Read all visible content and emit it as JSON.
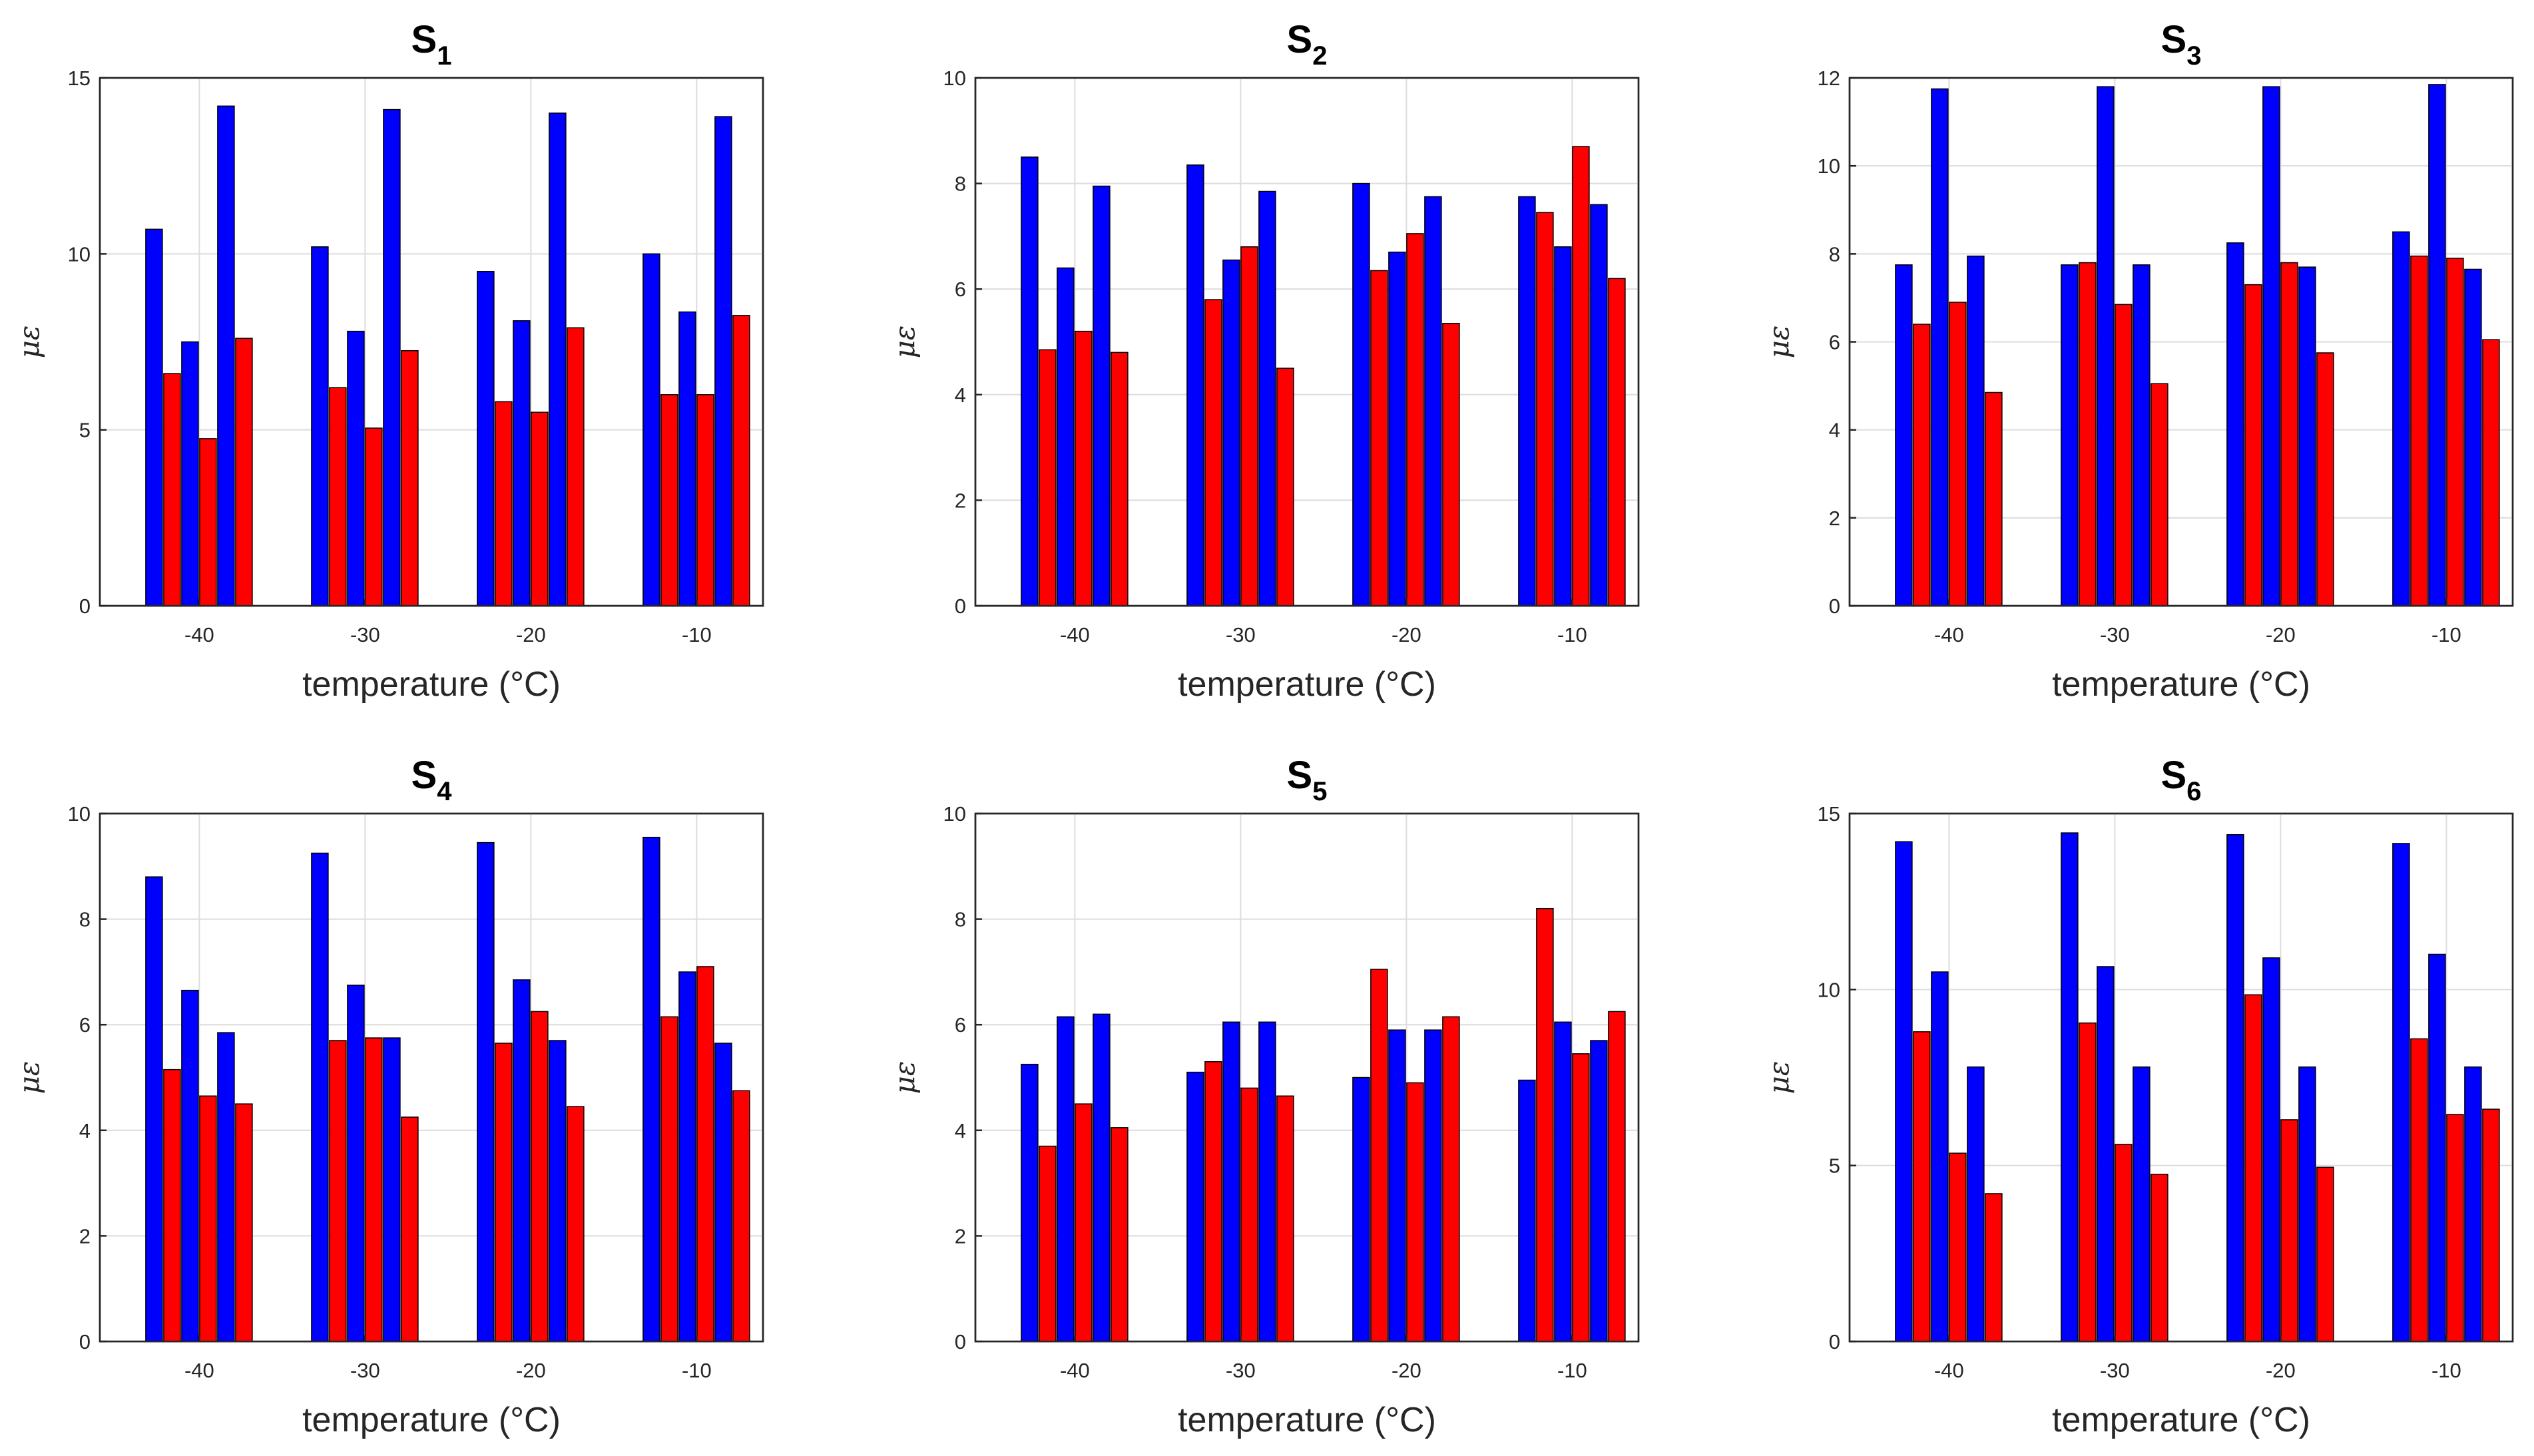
{
  "colors": {
    "blue": "#0000ff",
    "red": "#ff0000"
  },
  "chart_data": [
    {
      "type": "bar",
      "title": "S",
      "title_sub": "1",
      "xlabel": "temperature (°C)",
      "ylabel": "με",
      "categories": [
        "-40",
        "-30",
        "-20",
        "-10"
      ],
      "ylim": [
        0,
        15
      ],
      "yticks": [
        "0",
        "5",
        "10",
        "15"
      ],
      "grid": true,
      "bar_colors": [
        "blue",
        "red",
        "blue",
        "red",
        "blue",
        "red"
      ],
      "values": [
        [
          10.7,
          6.6,
          7.5,
          4.75,
          14.2,
          7.6
        ],
        [
          10.2,
          6.2,
          7.8,
          5.05,
          14.1,
          7.25
        ],
        [
          9.5,
          5.8,
          8.1,
          5.5,
          14.0,
          7.9
        ],
        [
          10.0,
          6.0,
          8.35,
          6.0,
          13.9,
          8.25
        ]
      ]
    },
    {
      "type": "bar",
      "title": "S",
      "title_sub": "2",
      "xlabel": "temperature (°C)",
      "ylabel": "με",
      "categories": [
        "-40",
        "-30",
        "-20",
        "-10"
      ],
      "ylim": [
        0,
        10
      ],
      "yticks": [
        "0",
        "2",
        "4",
        "6",
        "8",
        "10"
      ],
      "grid": true,
      "bar_colors": [
        "blue",
        "red",
        "blue",
        "red",
        "blue",
        "red"
      ],
      "values": [
        [
          8.5,
          4.85,
          6.4,
          5.2,
          7.95,
          4.8
        ],
        [
          8.35,
          5.8,
          6.55,
          6.8,
          7.85,
          4.5
        ],
        [
          8.0,
          6.35,
          6.7,
          7.05,
          7.75,
          5.35
        ],
        [
          7.75,
          7.45,
          6.8,
          8.7,
          7.6,
          6.2
        ]
      ]
    },
    {
      "type": "bar",
      "title": "S",
      "title_sub": "3",
      "xlabel": "temperature (°C)",
      "ylabel": "με",
      "categories": [
        "-40",
        "-30",
        "-20",
        "-10"
      ],
      "ylim": [
        0,
        12
      ],
      "yticks": [
        "0",
        "2",
        "4",
        "6",
        "8",
        "10",
        "12"
      ],
      "grid": true,
      "bar_colors": [
        "blue",
        "red",
        "blue",
        "red",
        "blue",
        "red"
      ],
      "values": [
        [
          7.75,
          6.4,
          11.75,
          6.9,
          7.95,
          4.85
        ],
        [
          7.75,
          7.8,
          11.8,
          6.85,
          7.75,
          5.05
        ],
        [
          8.25,
          7.3,
          11.8,
          7.8,
          7.7,
          5.75
        ],
        [
          8.5,
          7.95,
          11.85,
          7.9,
          7.65,
          6.05
        ]
      ]
    },
    {
      "type": "bar",
      "title": "S",
      "title_sub": "4",
      "xlabel": "temperature (°C)",
      "ylabel": "με",
      "categories": [
        "-40",
        "-30",
        "-20",
        "-10"
      ],
      "ylim": [
        0,
        10
      ],
      "yticks": [
        "0",
        "2",
        "4",
        "6",
        "8",
        "10"
      ],
      "grid": true,
      "bar_colors": [
        "blue",
        "red",
        "blue",
        "red",
        "blue",
        "red"
      ],
      "values": [
        [
          8.8,
          5.15,
          6.65,
          4.65,
          5.85,
          4.5
        ],
        [
          9.25,
          5.7,
          6.75,
          5.75,
          5.75,
          4.25
        ],
        [
          9.45,
          5.65,
          6.85,
          6.25,
          5.7,
          4.45
        ],
        [
          9.55,
          6.15,
          7.0,
          7.1,
          5.65,
          4.75
        ]
      ]
    },
    {
      "type": "bar",
      "title": "S",
      "title_sub": "5",
      "xlabel": "temperature (°C)",
      "ylabel": "με",
      "categories": [
        "-40",
        "-30",
        "-20",
        "-10"
      ],
      "ylim": [
        0,
        10
      ],
      "yticks": [
        "0",
        "2",
        "4",
        "6",
        "8",
        "10"
      ],
      "grid": true,
      "bar_colors": [
        "blue",
        "red",
        "blue",
        "red",
        "blue",
        "red"
      ],
      "values": [
        [
          5.25,
          3.7,
          6.15,
          4.5,
          6.2,
          4.05
        ],
        [
          5.1,
          5.3,
          6.05,
          4.8,
          6.05,
          4.65
        ],
        [
          5.0,
          7.05,
          5.9,
          4.9,
          5.9,
          6.15
        ],
        [
          4.95,
          8.2,
          6.05,
          5.45,
          5.7,
          6.25
        ]
      ]
    },
    {
      "type": "bar",
      "title": "S",
      "title_sub": "6",
      "xlabel": "temperature (°C)",
      "ylabel": "με",
      "categories": [
        "-40",
        "-30",
        "-20",
        "-10"
      ],
      "ylim": [
        0,
        15
      ],
      "yticks": [
        "0",
        "5",
        "10",
        "15"
      ],
      "grid": true,
      "bar_colors": [
        "blue",
        "red",
        "blue",
        "red",
        "blue",
        "red"
      ],
      "values": [
        [
          14.2,
          8.8,
          10.5,
          5.35,
          7.8,
          4.2
        ],
        [
          14.45,
          9.05,
          10.65,
          5.6,
          7.8,
          4.75
        ],
        [
          14.4,
          9.85,
          10.9,
          6.3,
          7.8,
          4.95
        ],
        [
          14.15,
          8.6,
          11.0,
          6.45,
          7.8,
          6.6
        ]
      ]
    }
  ]
}
